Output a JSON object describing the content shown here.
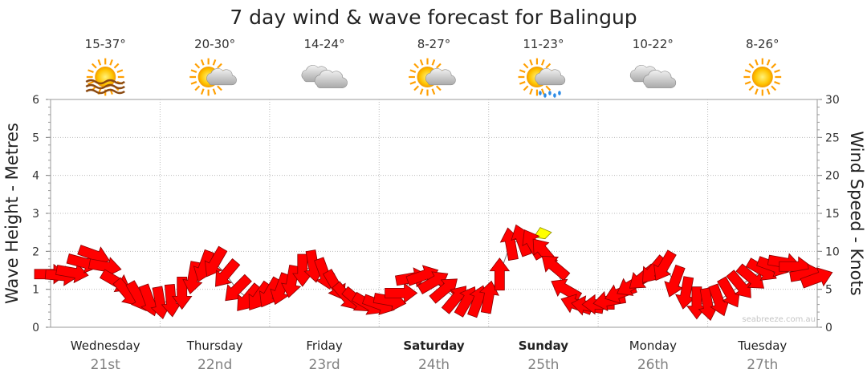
{
  "chart_data": {
    "type": "line",
    "title": "7 day wind & wave forecast for Balingup",
    "ylabel_left": "Wave Height - Metres",
    "ylabel_right": "Wind Speed - Knots",
    "ylim_left": [
      0,
      6
    ],
    "ylim_right": [
      0,
      30
    ],
    "left_ticks": [
      "0",
      "1",
      "2",
      "3",
      "4",
      "5",
      "6"
    ],
    "right_ticks": [
      "0",
      "5",
      "10",
      "15",
      "20",
      "25",
      "30"
    ],
    "watermark": "seabreeze.com.au",
    "days": [
      {
        "name": "Wednesday",
        "date": "21st",
        "temp": "15-37°",
        "icon": "sun-haze-icon",
        "bold": false
      },
      {
        "name": "Thursday",
        "date": "22nd",
        "temp": "20-30°",
        "icon": "sun-cloud-icon",
        "bold": false
      },
      {
        "name": "Friday",
        "date": "23rd",
        "temp": "14-24°",
        "icon": "cloud-icon",
        "bold": false
      },
      {
        "name": "Saturday",
        "date": "24th",
        "temp": "8-27°",
        "icon": "sun-cloud-icon",
        "bold": true
      },
      {
        "name": "Sunday",
        "date": "25th",
        "temp": "11-23°",
        "icon": "sun-cloud-rain-icon",
        "bold": true
      },
      {
        "name": "Monday",
        "date": "26th",
        "temp": "10-22°",
        "icon": "cloud-icon",
        "bold": false
      },
      {
        "name": "Tuesday",
        "date": "27th",
        "temp": "8-26°",
        "icon": "sun-icon",
        "bold": false
      }
    ],
    "wind_series": {
      "name": "Wind Speed",
      "unit": "knots",
      "color": "#ff0000",
      "gust_color": "#ffff00",
      "x_days": [
        0.0,
        0.1,
        0.2,
        0.3,
        0.4,
        0.5,
        0.6,
        0.7,
        0.8,
        0.9,
        1.0,
        1.1,
        1.2,
        1.3,
        1.4,
        1.5,
        1.6,
        1.7,
        1.8,
        1.9,
        2.0,
        2.1,
        2.2,
        2.3,
        2.4,
        2.5,
        2.6,
        2.7,
        2.8,
        2.9,
        3.0,
        3.1,
        3.2,
        3.3,
        3.4,
        3.5,
        3.6,
        3.7,
        3.8,
        3.9,
        4.0,
        4.1,
        4.2,
        4.3,
        4.4,
        4.5,
        4.6,
        4.7,
        4.8,
        4.9,
        5.0,
        5.1,
        5.2,
        5.3,
        5.4,
        5.5,
        5.6,
        5.7,
        5.8,
        5.9,
        6.0,
        6.1,
        6.2,
        6.3,
        6.4,
        6.5,
        6.6,
        6.7,
        6.8,
        6.9,
        7.0
      ],
      "values": [
        7.0,
        6.8,
        7.2,
        8.5,
        9.5,
        8.0,
        6.0,
        4.5,
        4.0,
        3.5,
        3.2,
        3.5,
        4.5,
        6.5,
        8.0,
        8.5,
        7.0,
        5.0,
        3.8,
        4.0,
        4.5,
        5.0,
        6.0,
        7.5,
        8.0,
        7.0,
        5.5,
        4.0,
        3.5,
        3.0,
        3.0,
        3.5,
        4.5,
        6.5,
        6.8,
        6.0,
        5.0,
        3.8,
        3.5,
        3.5,
        4.0,
        7.0,
        11.0,
        11.5,
        11.0,
        10.0,
        8.0,
        5.0,
        3.0,
        2.8,
        3.0,
        3.5,
        4.5,
        5.5,
        6.5,
        7.5,
        8.0,
        6.0,
        4.5,
        3.2,
        3.0,
        3.5,
        4.5,
        5.5,
        6.5,
        7.5,
        8.0,
        8.5,
        8.0,
        7.0,
        6.5
      ],
      "directions_deg": [
        270,
        275,
        280,
        285,
        290,
        280,
        300,
        320,
        330,
        340,
        350,
        355,
        0,
        10,
        20,
        30,
        40,
        45,
        40,
        35,
        30,
        20,
        10,
        0,
        350,
        340,
        330,
        320,
        310,
        300,
        290,
        280,
        270,
        260,
        250,
        240,
        230,
        220,
        210,
        200,
        190,
        180,
        170,
        160,
        150,
        140,
        130,
        120,
        110,
        100,
        90,
        80,
        70,
        60,
        50,
        40,
        30,
        20,
        10,
        0,
        350,
        340,
        330,
        320,
        310,
        300,
        290,
        280,
        270,
        260,
        250
      ],
      "gust_peak": {
        "day": 4.5,
        "value": 12.5
      }
    },
    "wave_series": {
      "name": "Wave Height",
      "unit": "metres",
      "values": []
    }
  }
}
